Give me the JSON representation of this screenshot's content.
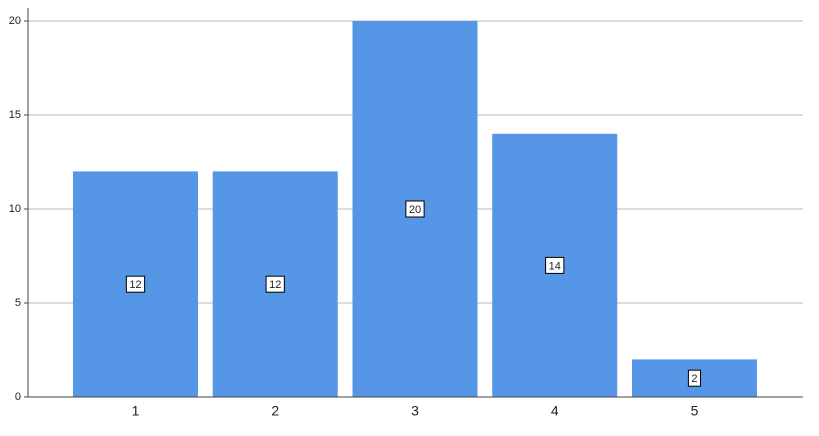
{
  "chart_data": {
    "type": "bar",
    "categories": [
      "1",
      "2",
      "3",
      "4",
      "5"
    ],
    "values": [
      12,
      12,
      20,
      14,
      2
    ],
    "color": "#5596e6",
    "ylim": [
      0,
      20
    ],
    "yticks": [
      0,
      5,
      10,
      15,
      20
    ],
    "grid": true
  }
}
